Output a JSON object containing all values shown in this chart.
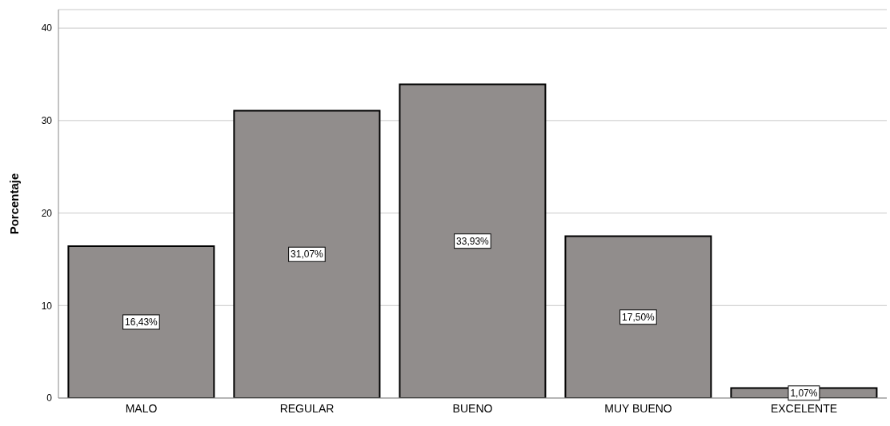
{
  "chart_data": {
    "type": "bar",
    "ylabel": "Porcentaje",
    "categories": [
      "MALO",
      "REGULAR",
      "BUENO",
      "MUY BUENO",
      "EXCELENTE"
    ],
    "values": [
      16.43,
      31.07,
      33.93,
      17.5,
      1.07
    ],
    "value_labels": [
      "16,43%",
      "31,07%",
      "33,93%",
      "17,50%",
      "1,07%"
    ],
    "color": "#918d8c",
    "ylim": [
      0,
      42
    ],
    "yticks": [
      0,
      10,
      20,
      30,
      40
    ],
    "grid": "y"
  }
}
